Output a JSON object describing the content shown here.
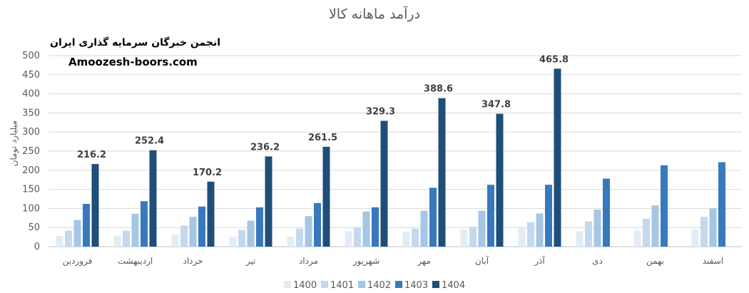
{
  "chart_data": {
    "type": "bar",
    "title": "درآمد ماهانه کالا",
    "ylabel": "میلیارد تومان",
    "xlabel": "",
    "ylim": [
      0,
      500
    ],
    "yticks": [
      "0",
      "50",
      "100",
      "150",
      "200",
      "250",
      "300",
      "350",
      "400",
      "450",
      "500"
    ],
    "grid": true,
    "legend_position": "bottom",
    "categories": [
      "فروردین",
      "اردیبهشت",
      "خرداد",
      "تیر",
      "مرداد",
      "شهریور",
      "مهر",
      "آبان",
      "آذر",
      "دی",
      "بهمن",
      "اسفند"
    ],
    "series": [
      {
        "name": "1400",
        "color": "#e2ecf6",
        "values": [
          28,
          28,
          32,
          26,
          26,
          40,
          40,
          45,
          48,
          40,
          42,
          45
        ]
      },
      {
        "name": "1401",
        "color": "#c4d9ee",
        "values": [
          42,
          42,
          55,
          44,
          47,
          50,
          47,
          52,
          64,
          66,
          73,
          78
        ]
      },
      {
        "name": "1402",
        "color": "#a5c6e5",
        "values": [
          70,
          86,
          78,
          68,
          80,
          92,
          94,
          94,
          87,
          97,
          108,
          100
        ]
      },
      {
        "name": "1403",
        "color": "#3879be",
        "values": [
          112,
          119,
          105,
          103,
          114,
          103,
          154,
          162,
          162,
          178,
          213,
          221
        ]
      },
      {
        "name": "1404",
        "color": "#1f4e79",
        "values": [
          216.2,
          252.4,
          170.2,
          236.2,
          261.5,
          329.3,
          388.6,
          347.8,
          465.8,
          null,
          null,
          null
        ]
      }
    ],
    "data_labels": [
      "216.2",
      "252.4",
      "170.2",
      "236.2",
      "261.5",
      "329.3",
      "388.6",
      "347.8",
      "465.8"
    ]
  },
  "watermark": {
    "org": "انجمن خبرگان سرمایه گذاری ایران",
    "site": "Amoozesh-boors.com"
  }
}
